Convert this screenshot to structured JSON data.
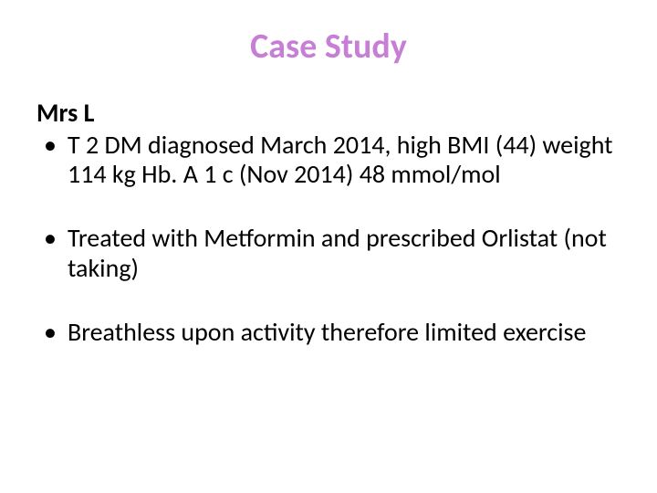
{
  "title": {
    "text": "Case Study",
    "color": "#c77fd6",
    "fontsize": 38
  },
  "subtitle": {
    "text": "Mrs L",
    "fontsize": 28
  },
  "background_color": "#ffffff",
  "text_color": "#000000",
  "body_fontsize": 28,
  "bullets": [
    "T 2 DM diagnosed March 2014, high BMI (44) weight 114 kg Hb. A 1 c (Nov 2014) 48 mmol/mol",
    "Treated with Metformin and prescribed Orlistat (not taking)",
    "Breathless upon activity therefore limited exercise"
  ]
}
